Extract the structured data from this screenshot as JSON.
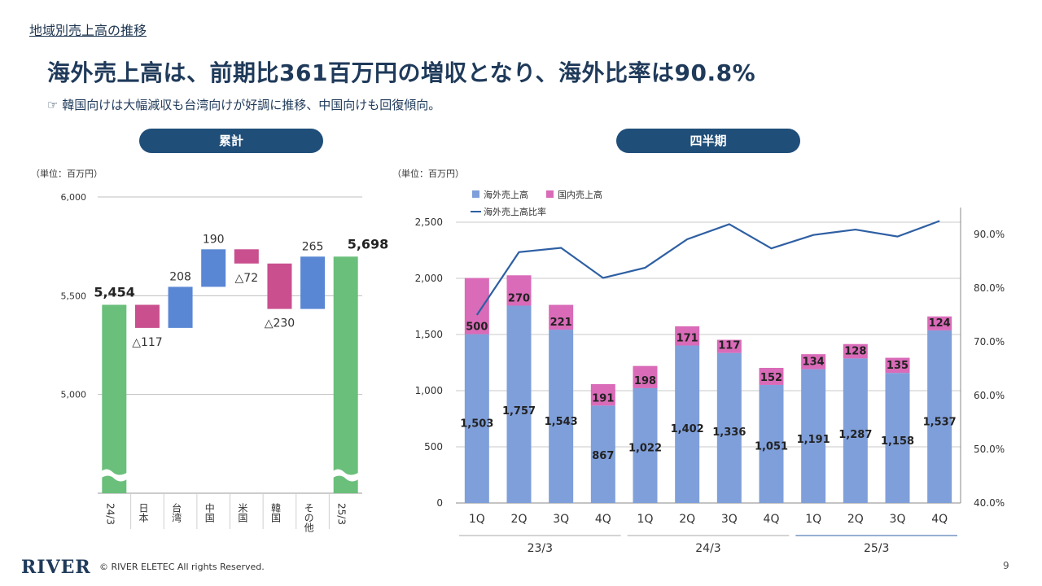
{
  "header": {
    "section_title": "地域別売上高の推移",
    "headline": "海外売上高は、前期比361百万円の増収となり、海外比率は90.8%",
    "subline": "☞ 韓国向けは大幅減収も台湾向けが好調に推移、中国向けも回復傾向。"
  },
  "panels": {
    "cumulative_label": "累計",
    "quarterly_label": "四半期"
  },
  "footer": {
    "logo": "RIVER",
    "copyright": "© RIVER ELETEC All rights Reserved.",
    "page": "9"
  },
  "colors": {
    "green": "#6abf7b",
    "magenta": "#c94f8f",
    "blue": "#5a87d4",
    "overseas": "#7f9fda",
    "domestic": "#d96bb8",
    "line": "#2e5fa3"
  },
  "chart_data": [
    {
      "type": "bar",
      "subtype": "waterfall",
      "unit_label": "（単位：百万円）",
      "categories": [
        "24/3",
        "日本",
        "台湾",
        "中国",
        "米国",
        "韓国",
        "その他",
        "25/3"
      ],
      "values": [
        5454,
        -117,
        208,
        190,
        -72,
        -230,
        265,
        5698
      ],
      "labels": [
        "5,454",
        "△117",
        "208",
        "190",
        "△72",
        "△230",
        "265",
        "5,698"
      ],
      "ylim": [
        4500,
        6000
      ],
      "yticks": [
        5000,
        5500,
        6000
      ],
      "ytick_labels": [
        "5,000",
        "5,500",
        "6,000"
      ],
      "axis_break": true,
      "grid": true
    },
    {
      "type": "bar",
      "subtype": "stacked_bar_with_line",
      "unit_label": "（単位：百万円）",
      "categories": [
        "1Q",
        "2Q",
        "3Q",
        "4Q",
        "1Q",
        "2Q",
        "3Q",
        "4Q",
        "1Q",
        "2Q",
        "3Q",
        "4Q"
      ],
      "groups": [
        {
          "label": "23/3",
          "start": 0,
          "end": 3
        },
        {
          "label": "24/3",
          "start": 4,
          "end": 7
        },
        {
          "label": "25/3",
          "start": 8,
          "end": 11
        }
      ],
      "series": [
        {
          "name": "海外売上高",
          "values": [
            1503,
            1757,
            1543,
            867,
            1022,
            1402,
            1336,
            1051,
            1191,
            1287,
            1158,
            1537
          ],
          "labels": [
            "1,503",
            "1,757",
            "1,543",
            "867",
            "1,022",
            "1,402",
            "1,336",
            "1,051",
            "1,191",
            "1,287",
            "1,158",
            "1,537"
          ]
        },
        {
          "name": "国内売上高",
          "values": [
            500,
            270,
            221,
            191,
            198,
            171,
            117,
            152,
            134,
            128,
            135,
            124
          ],
          "labels": [
            "500",
            "270",
            "221",
            "191",
            "198",
            "171",
            "117",
            "152",
            "134",
            "128",
            "135",
            "124"
          ]
        },
        {
          "name": "海外売上高比率",
          "axis": "right",
          "values": [
            75.0,
            86.7,
            87.5,
            81.9,
            83.8,
            89.1,
            91.9,
            87.4,
            89.9,
            90.9,
            89.6,
            92.5
          ]
        }
      ],
      "ylim": [
        0,
        2500
      ],
      "yticks": [
        0,
        500,
        1000,
        1500,
        2000,
        2500
      ],
      "ytick_labels": [
        "0",
        "500",
        "1,000",
        "1,500",
        "2,000",
        "2,500"
      ],
      "y2lim": [
        40,
        95
      ],
      "y2ticks": [
        40,
        50,
        60,
        70,
        80,
        90
      ],
      "y2tick_labels": [
        "40.0%",
        "50.0%",
        "60.0%",
        "70.0%",
        "80.0%",
        "90.0%"
      ],
      "legend_position": "top-left",
      "grid": true
    }
  ]
}
